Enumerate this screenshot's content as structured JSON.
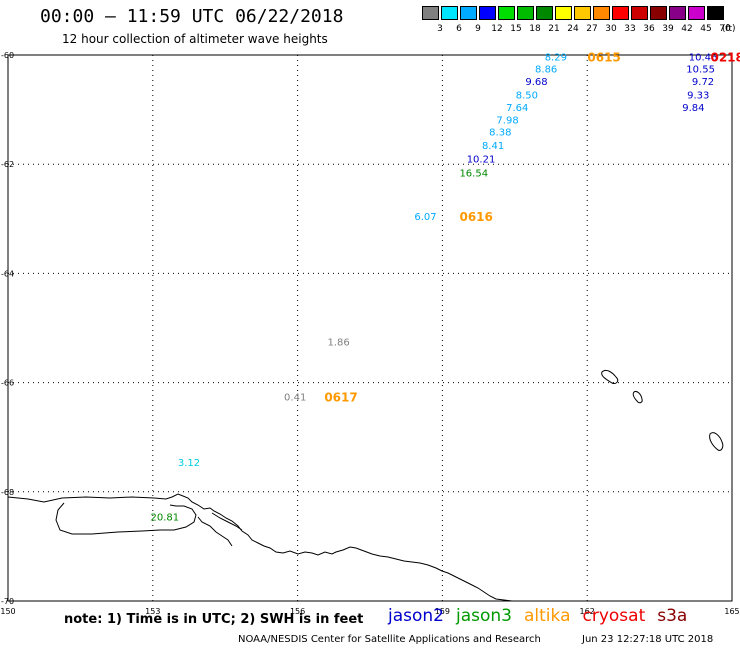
{
  "header": {
    "title": "00:00 – 11:59 UTC 06/22/2018",
    "subtitle": "12 hour collection of altimeter wave heights"
  },
  "legend": {
    "colors": [
      "#808080",
      "#00e5ff",
      "#00aaff",
      "#0000ff",
      "#00dd00",
      "#00bb00",
      "#008800",
      "#ffff00",
      "#ffc800",
      "#ff8800",
      "#ff0000",
      "#cc0000",
      "#880000",
      "#880088",
      "#cc00cc",
      "#000000"
    ],
    "ticks": [
      "3",
      "6",
      "9",
      "12",
      "15",
      "18",
      "21",
      "24",
      "27",
      "30",
      "33",
      "36",
      "39",
      "42",
      "45",
      "70"
    ],
    "unit": "(ft)"
  },
  "axes": {
    "x_ticks": [
      "150",
      "153",
      "156",
      "159",
      "162",
      "165"
    ],
    "y_ticks": [
      "-60",
      "-62",
      "-64",
      "-66",
      "-68",
      "-70"
    ]
  },
  "map_data": {
    "lon_range": [
      150,
      165
    ],
    "lat_range": [
      -70,
      -60
    ],
    "wave_labels": [
      {
        "text": "8.29",
        "color": "#00aaff",
        "lon": 161.35,
        "lat": -60.03
      },
      {
        "text": "8.86",
        "color": "#00aaff",
        "lon": 161.15,
        "lat": -60.25
      },
      {
        "text": "9.68",
        "color": "#0000cc",
        "lon": 160.95,
        "lat": -60.48
      },
      {
        "text": "8.50",
        "color": "#00aaff",
        "lon": 160.75,
        "lat": -60.72
      },
      {
        "text": "7.64",
        "color": "#00aaff",
        "lon": 160.55,
        "lat": -60.95
      },
      {
        "text": "7.98",
        "color": "#00aaff",
        "lon": 160.35,
        "lat": -61.18
      },
      {
        "text": "8.38",
        "color": "#00aaff",
        "lon": 160.2,
        "lat": -61.4
      },
      {
        "text": "8.41",
        "color": "#00aaff",
        "lon": 160.05,
        "lat": -61.65
      },
      {
        "text": "10.21",
        "color": "#0000cc",
        "lon": 159.8,
        "lat": -61.9
      },
      {
        "text": "16.54",
        "color": "#008800",
        "lon": 159.65,
        "lat": -62.15
      },
      {
        "text": "6.07",
        "color": "#00aaff",
        "lon": 158.65,
        "lat": -62.95
      },
      {
        "text": "1.86",
        "color": "#808080",
        "lon": 156.85,
        "lat": -65.25
      },
      {
        "text": "0.41",
        "color": "#808080",
        "lon": 155.95,
        "lat": -66.25
      },
      {
        "text": "3.12",
        "color": "#00ccdd",
        "lon": 153.75,
        "lat": -67.45
      },
      {
        "text": "20.81",
        "color": "#008800",
        "lon": 153.25,
        "lat": -68.45
      },
      {
        "text": "10.46",
        "color": "#0000cc",
        "lon": 164.4,
        "lat": -60.03
      },
      {
        "text": "10.55",
        "color": "#0000cc",
        "lon": 164.35,
        "lat": -60.25
      },
      {
        "text": "9.72",
        "color": "#0000cc",
        "lon": 164.4,
        "lat": -60.48
      },
      {
        "text": "9.33",
        "color": "#0000cc",
        "lon": 164.3,
        "lat": -60.72
      },
      {
        "text": "9.84",
        "color": "#0000cc",
        "lon": 164.2,
        "lat": -60.95
      }
    ],
    "time_labels": [
      {
        "text": "0615",
        "color": "#ff9900",
        "lon": 162.35,
        "lat": -60.03
      },
      {
        "text": "0616",
        "color": "#ff9900",
        "lon": 159.7,
        "lat": -62.95
      },
      {
        "text": "0617",
        "color": "#ff9900",
        "lon": 156.9,
        "lat": -66.25
      },
      {
        "text": "0218",
        "color": "#ee0000",
        "lon": 164.9,
        "lat": -60.03
      }
    ]
  },
  "note": "note: 1) Time is in UTC; 2) SWH is in feet",
  "satellites": [
    {
      "name": "jason2",
      "color": "#0000cc"
    },
    {
      "name": "jason3",
      "color": "#009900"
    },
    {
      "name": "altika",
      "color": "#ff9900"
    },
    {
      "name": "cryosat",
      "color": "#ee0000"
    },
    {
      "name": "s3a",
      "color": "#880000"
    }
  ],
  "footer": {
    "credit": "NOAA/NESDIS Center for Satellite Applications and Research",
    "timestamp": "Jun 23 12:27:18 UTC 2018"
  }
}
